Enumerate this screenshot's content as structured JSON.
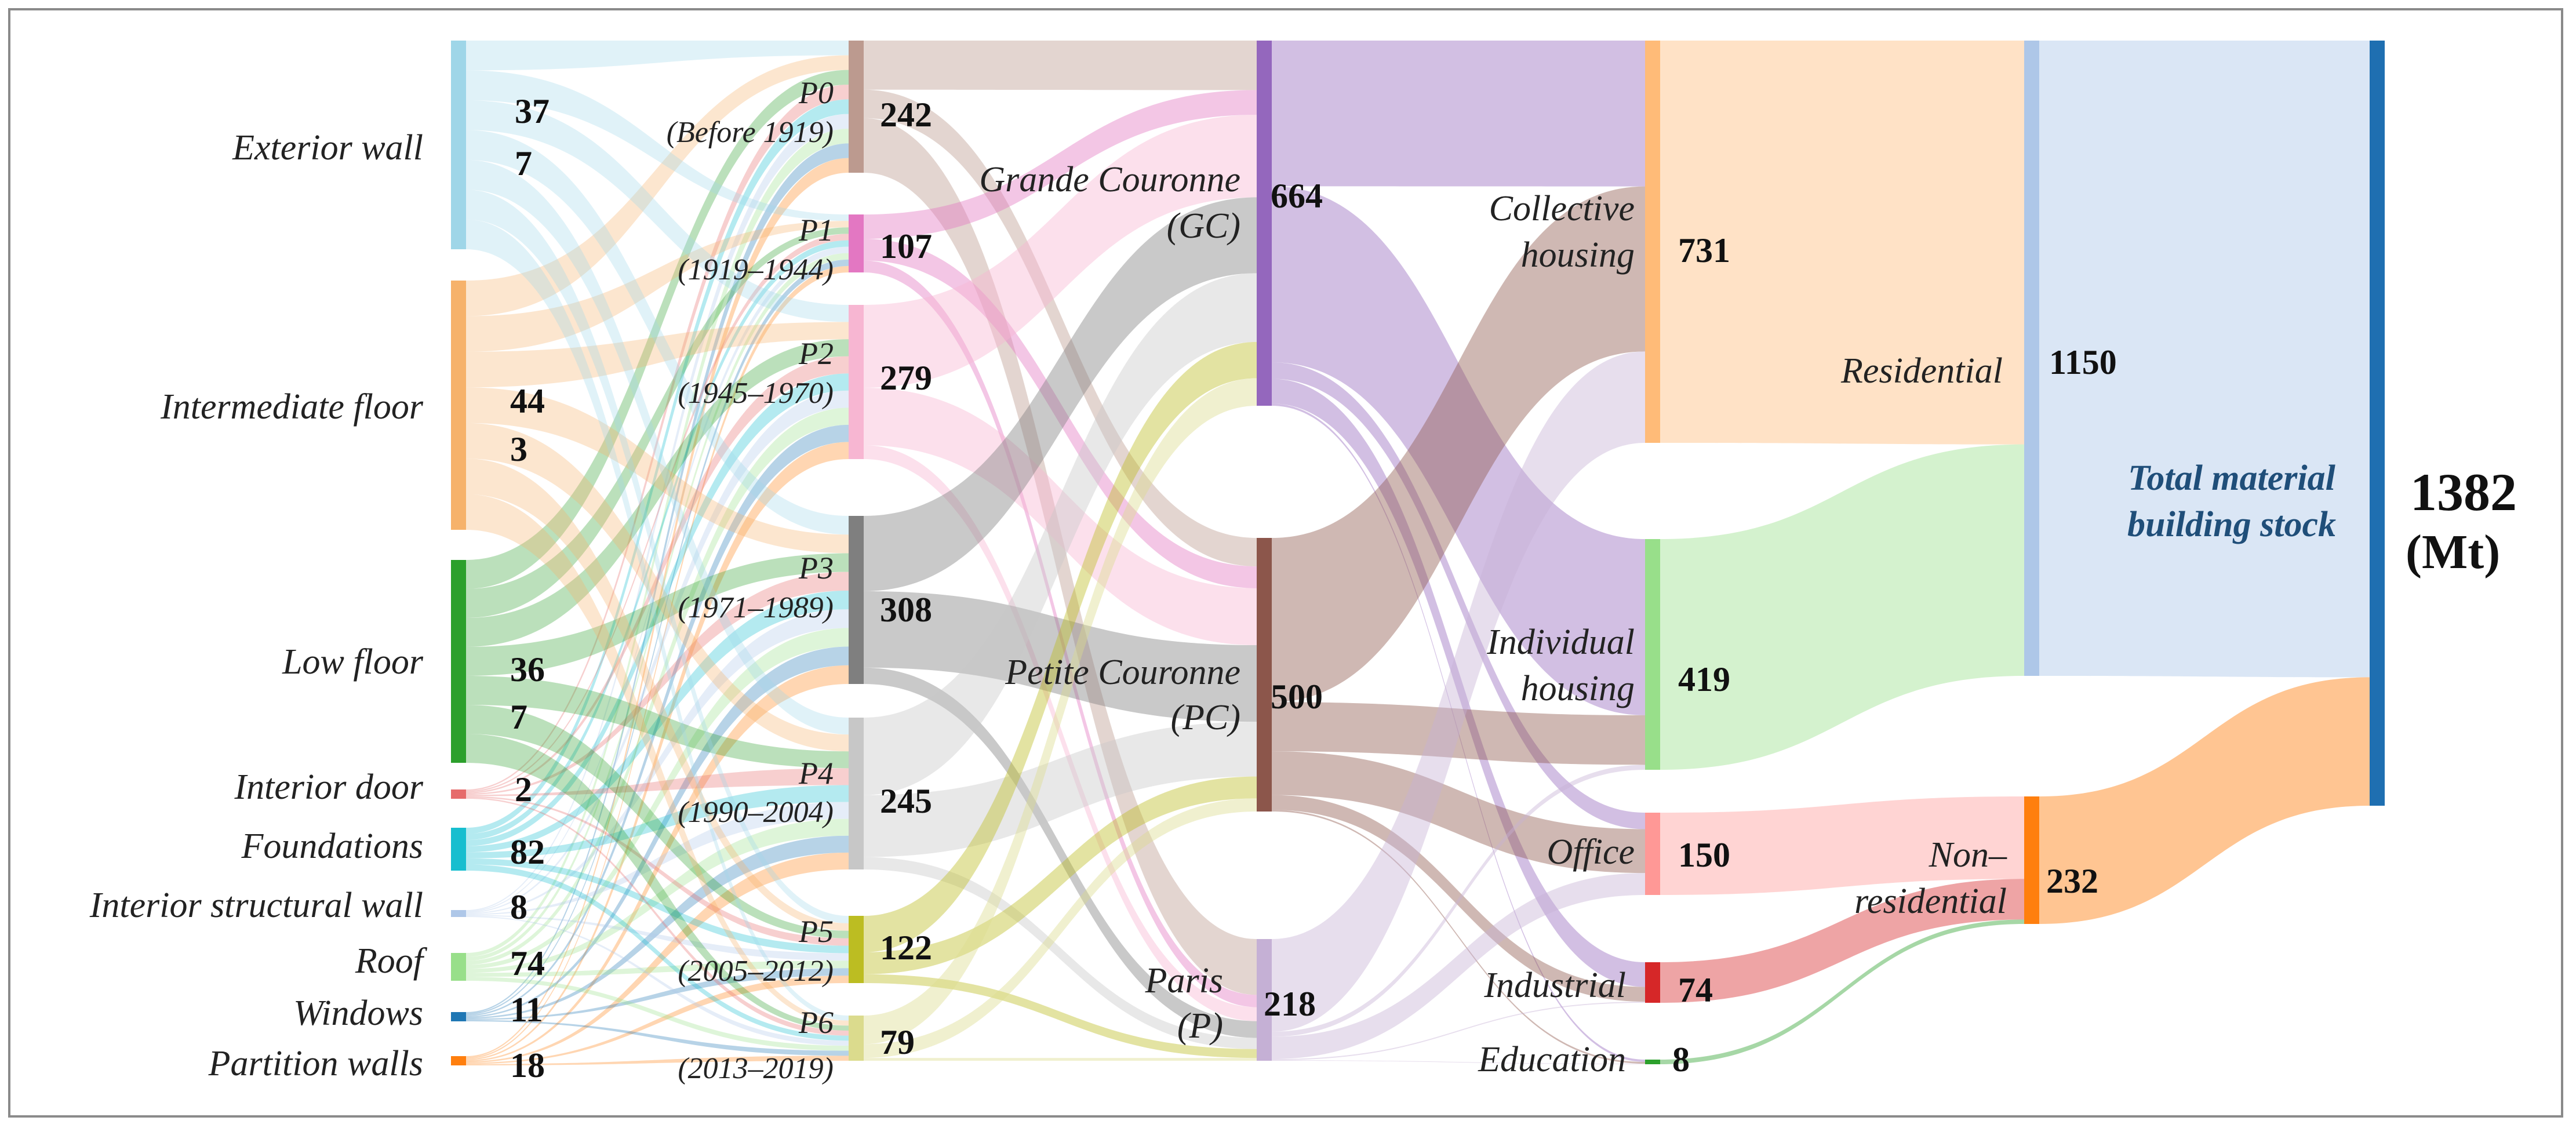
{
  "chart_data": {
    "type": "sankey",
    "title": "",
    "unit": "(Mt)",
    "total": {
      "label": "Total material building stock",
      "value": "1382",
      "unit": "(Mt)",
      "color": "#1f6fb1",
      "label_color": "#1f4e79"
    },
    "columns": [
      {
        "key": "elements",
        "nodes": [
          {
            "id": "ew",
            "name": "Exterior wall",
            "color": "#9fd6e8",
            "values": [
              "37",
              "7"
            ]
          },
          {
            "id": "if",
            "name": "Intermediate floor",
            "color": "#f6b26b",
            "values": [
              "44",
              "3"
            ]
          },
          {
            "id": "lf",
            "name": "Low floor",
            "color": "#2ca02c",
            "values": [
              "36",
              "7"
            ]
          },
          {
            "id": "id",
            "name": "Interior door",
            "color": "#e66b6b",
            "values": [
              "2"
            ]
          },
          {
            "id": "fd",
            "name": "Foundations",
            "color": "#17becf",
            "values": [
              "82"
            ]
          },
          {
            "id": "isw",
            "name": "Interior structural wall",
            "color": "#aec7e8",
            "values": [
              "8"
            ]
          },
          {
            "id": "rf",
            "name": "Roof",
            "color": "#98df8a",
            "values": [
              "74"
            ]
          },
          {
            "id": "wn",
            "name": "Windows",
            "color": "#1f77b4",
            "values": [
              "11"
            ]
          },
          {
            "id": "pw",
            "name": "Partition walls",
            "color": "#ff7f0e",
            "values": [
              "18"
            ]
          }
        ]
      },
      {
        "key": "periods",
        "nodes": [
          {
            "id": "p0",
            "name": "P0",
            "sub": "(Before 1919)",
            "value": "242",
            "color": "#bc9a8f"
          },
          {
            "id": "p1",
            "name": "P1",
            "sub": "(1919–1944)",
            "value": "107",
            "color": "#e377c2"
          },
          {
            "id": "p2",
            "name": "P2",
            "sub": "(1945–1970)",
            "value": "279",
            "color": "#f7b6d2"
          },
          {
            "id": "p3",
            "name": "P3",
            "sub": "(1971–1989)",
            "value": "308",
            "color": "#7f7f7f"
          },
          {
            "id": "p4",
            "name": "P4",
            "sub": "(1990–2004)",
            "value": "245",
            "color": "#c7c7c7"
          },
          {
            "id": "p5",
            "name": "P5",
            "sub": "(2005–2012)",
            "value": "122",
            "color": "#bcbd22"
          },
          {
            "id": "p6",
            "name": "P6",
            "sub": "(2013–2019)",
            "value": "79",
            "color": "#dbdb8d"
          }
        ]
      },
      {
        "key": "zones",
        "nodes": [
          {
            "id": "gc",
            "name": "Grande Couronne",
            "sub": "(GC)",
            "value": "664",
            "color": "#9467bd"
          },
          {
            "id": "pc",
            "name": "Petite Couronne",
            "sub": "(PC)",
            "value": "500",
            "color": "#8c564b"
          },
          {
            "id": "pa",
            "name": "Paris",
            "sub": "(P)",
            "value": "218",
            "color": "#c5b0d5"
          }
        ]
      },
      {
        "key": "uses",
        "nodes": [
          {
            "id": "ch",
            "name": "Collective",
            "sub": "housing",
            "value": "731",
            "color": "#ffbb78"
          },
          {
            "id": "ih",
            "name": "Individual",
            "sub": "housing",
            "value": "419",
            "color": "#98df8a"
          },
          {
            "id": "of",
            "name": "Office",
            "value": "150",
            "color": "#ff9896"
          },
          {
            "id": "in",
            "name": "Industrial",
            "value": "74",
            "color": "#d62728"
          },
          {
            "id": "ed",
            "name": "Education",
            "value": "8",
            "color": "#2ca02c"
          }
        ]
      },
      {
        "key": "sectors",
        "nodes": [
          {
            "id": "res",
            "name": "Residential",
            "value": "1150",
            "color": "#aec7e8"
          },
          {
            "id": "nres",
            "name": "Non–",
            "sub": "residential",
            "value": "232",
            "color": "#ff7f0e"
          }
        ]
      }
    ],
    "links": [
      {
        "source": "p0",
        "target": "gc",
        "value": 90
      },
      {
        "source": "p0",
        "target": "pc",
        "value": 52
      },
      {
        "source": "p0",
        "target": "pa",
        "value": 100
      },
      {
        "source": "p1",
        "target": "gc",
        "value": 45
      },
      {
        "source": "p1",
        "target": "pc",
        "value": 40
      },
      {
        "source": "p1",
        "target": "pa",
        "value": 22
      },
      {
        "source": "p2",
        "target": "gc",
        "value": 150
      },
      {
        "source": "p2",
        "target": "pc",
        "value": 104
      },
      {
        "source": "p2",
        "target": "pa",
        "value": 25
      },
      {
        "source": "p3",
        "target": "gc",
        "value": 138
      },
      {
        "source": "p3",
        "target": "pc",
        "value": 140
      },
      {
        "source": "p3",
        "target": "pa",
        "value": 30
      },
      {
        "source": "p4",
        "target": "gc",
        "value": 125
      },
      {
        "source": "p4",
        "target": "pc",
        "value": 100
      },
      {
        "source": "p4",
        "target": "pa",
        "value": 20
      },
      {
        "source": "p5",
        "target": "gc",
        "value": 66
      },
      {
        "source": "p5",
        "target": "pc",
        "value": 40
      },
      {
        "source": "p5",
        "target": "pa",
        "value": 16
      },
      {
        "source": "p6",
        "target": "gc",
        "value": 50
      },
      {
        "source": "p6",
        "target": "pc",
        "value": 24
      },
      {
        "source": "p6",
        "target": "pa",
        "value": 5
      },
      {
        "source": "gc",
        "target": "ch",
        "value": 265
      },
      {
        "source": "gc",
        "target": "ih",
        "value": 320
      },
      {
        "source": "gc",
        "target": "of",
        "value": 30
      },
      {
        "source": "gc",
        "target": "in",
        "value": 45
      },
      {
        "source": "gc",
        "target": "ed",
        "value": 4
      },
      {
        "source": "pc",
        "target": "ch",
        "value": 300
      },
      {
        "source": "pc",
        "target": "ih",
        "value": 90
      },
      {
        "source": "pc",
        "target": "of",
        "value": 80
      },
      {
        "source": "pc",
        "target": "in",
        "value": 27
      },
      {
        "source": "pc",
        "target": "ed",
        "value": 3
      },
      {
        "source": "pa",
        "target": "ch",
        "value": 166
      },
      {
        "source": "pa",
        "target": "ih",
        "value": 9
      },
      {
        "source": "pa",
        "target": "of",
        "value": 40
      },
      {
        "source": "pa",
        "target": "in",
        "value": 2
      },
      {
        "source": "pa",
        "target": "ed",
        "value": 1
      },
      {
        "source": "ch",
        "target": "res",
        "value": 731
      },
      {
        "source": "ih",
        "target": "res",
        "value": 419
      },
      {
        "source": "of",
        "target": "nres",
        "value": 150
      },
      {
        "source": "in",
        "target": "nres",
        "value": 74
      },
      {
        "source": "ed",
        "target": "nres",
        "value": 8
      },
      {
        "source": "res",
        "target": "total",
        "value": 1150
      },
      {
        "source": "nres",
        "target": "total",
        "value": 232
      }
    ]
  }
}
